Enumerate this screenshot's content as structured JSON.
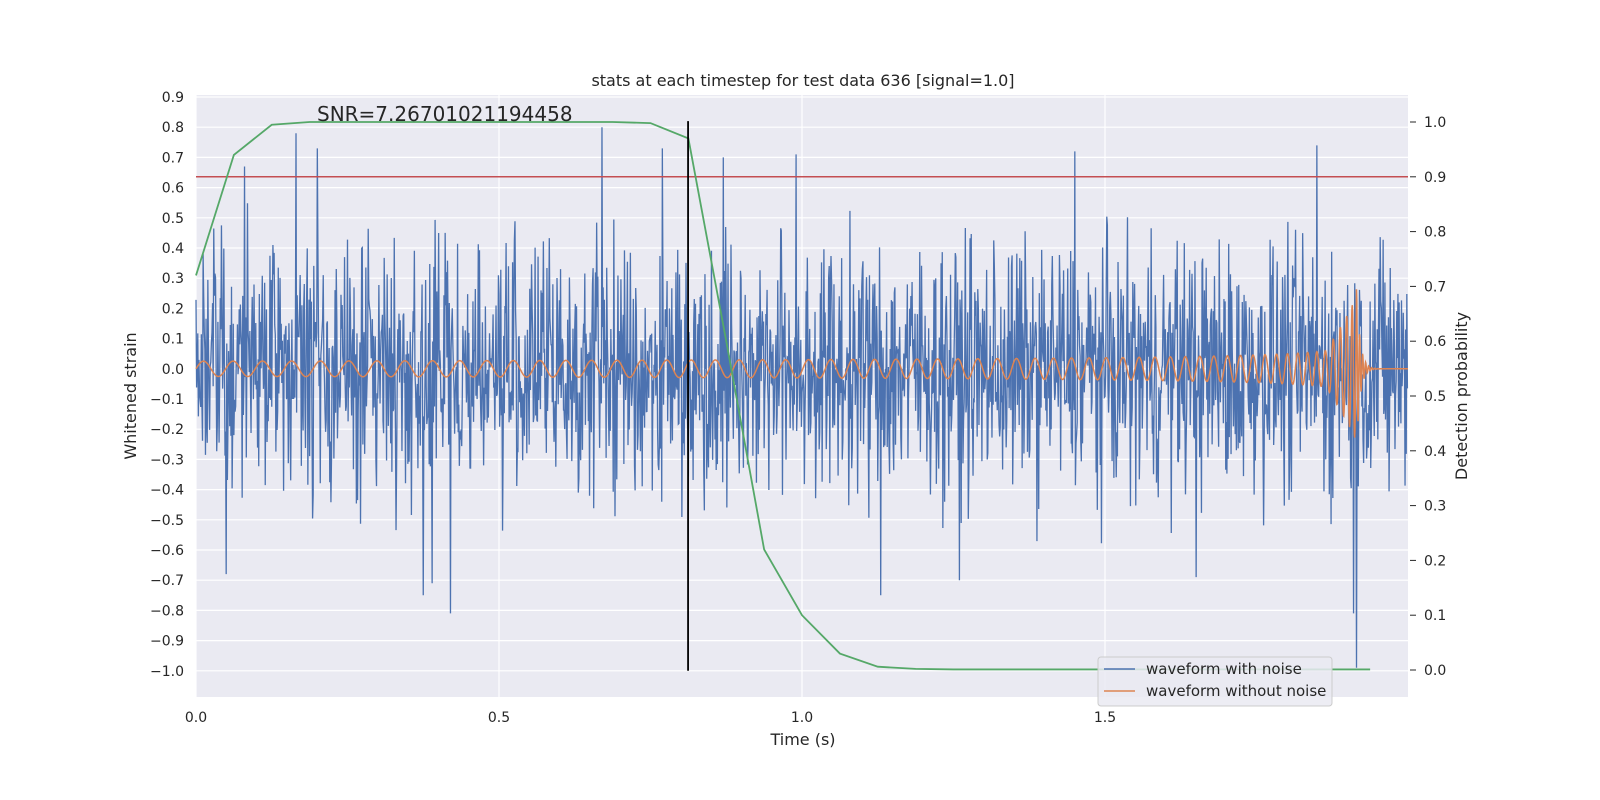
{
  "chart_data": {
    "type": "line",
    "title": "stats at each timestep for test data 636 [signal=1.0]",
    "xlabel": "Time (s)",
    "ylabel": "Whitened strain",
    "y2label": "Detection probability",
    "xlim": [
      0.0,
      2.0
    ],
    "ylim": [
      -1.09,
      0.9
    ],
    "y2lim": [
      -0.05,
      1.05
    ],
    "x_ticks": [
      0.0,
      0.5,
      1.0,
      1.5
    ],
    "x_tick_labels": [
      "0.0",
      "0.5",
      "1.0",
      "1.5"
    ],
    "y_ticks": [
      0.9,
      0.8,
      0.7,
      0.6,
      0.5,
      0.4,
      0.3,
      0.2,
      0.1,
      0.0,
      -0.1,
      -0.2,
      -0.3,
      -0.4,
      -0.5,
      -0.6,
      -0.7,
      -0.8,
      -0.9,
      -1.0
    ],
    "y_tick_labels": [
      "0.9",
      "0.8",
      "0.7",
      "0.6",
      "0.5",
      "0.4",
      "0.3",
      "0.2",
      "0.1",
      "0.0",
      "−0.1",
      "−0.2",
      "−0.3",
      "−0.4",
      "−0.5",
      "−0.6",
      "−0.7",
      "−0.8",
      "−0.9",
      "−1.0"
    ],
    "y2_ticks": [
      1.0,
      0.9,
      0.8,
      0.7,
      0.6,
      0.5,
      0.4,
      0.3,
      0.2,
      0.1,
      0.0
    ],
    "y2_tick_labels": [
      "1.0",
      "0.9",
      "0.8",
      "0.7",
      "0.6",
      "0.5",
      "0.4",
      "0.3",
      "0.2",
      "0.1",
      "0.0"
    ],
    "annotation": "SNR=7.26701021194458",
    "annotation_x": 0.2,
    "annotation_y": 0.8,
    "threshold": {
      "axis": "right",
      "value": 0.9,
      "color": "#c44e52"
    },
    "event_marker": {
      "x": 0.812,
      "ymin": -1.0,
      "ymax": 0.82,
      "color": "#000000"
    },
    "noise_series": {
      "name": "waveform with noise",
      "color": "#4c72b0",
      "x_end": 2.0,
      "n_points": 2048,
      "amplitude": 0.27,
      "spikes": [
        {
          "x": 0.165,
          "y": 0.78
        },
        {
          "x": 0.2,
          "y": 0.73
        },
        {
          "x": 0.08,
          "y": 0.67
        },
        {
          "x": 0.67,
          "y": 0.8
        },
        {
          "x": 0.77,
          "y": 0.73
        },
        {
          "x": 0.87,
          "y": 0.7
        },
        {
          "x": 0.99,
          "y": 0.71
        },
        {
          "x": 1.45,
          "y": 0.72
        },
        {
          "x": 1.85,
          "y": 0.74
        },
        {
          "x": 0.05,
          "y": -0.68
        },
        {
          "x": 0.42,
          "y": -0.81
        },
        {
          "x": 0.375,
          "y": -0.75
        },
        {
          "x": 0.39,
          "y": -0.71
        },
        {
          "x": 1.13,
          "y": -0.75
        },
        {
          "x": 1.26,
          "y": -0.7
        },
        {
          "x": 1.65,
          "y": -0.69
        },
        {
          "x": 1.915,
          "y": -0.99
        },
        {
          "x": 1.91,
          "y": -0.81
        }
      ]
    },
    "clean_series": {
      "name": "waveform without noise",
      "color": "#dd8452",
      "x_end": 2.0,
      "merger_time": 1.915,
      "base_amplitude": 0.025,
      "peak_amplitude": 0.27,
      "start_frequency_hz": 20,
      "peak_frequency_hz": 180
    },
    "detection_series": {
      "name": "detection probability",
      "color": "#55a868",
      "axis": "right",
      "x": [
        0.0,
        0.0625,
        0.125,
        0.1875,
        0.25,
        0.3125,
        0.375,
        0.4375,
        0.5,
        0.5625,
        0.625,
        0.6875,
        0.75,
        0.8125,
        0.875,
        0.9375,
        1.0,
        1.0625,
        1.125,
        1.1875,
        1.25,
        1.3125,
        1.375,
        1.4375,
        1.5,
        1.5625,
        1.625,
        1.6875,
        1.75,
        1.8125,
        1.875,
        1.9375
      ],
      "y": [
        0.72,
        0.94,
        0.995,
        1.0,
        1.0,
        1.0,
        1.0,
        1.0,
        1.0,
        1.0,
        1.0,
        1.0,
        0.998,
        0.97,
        0.6,
        0.22,
        0.1,
        0.03,
        0.006,
        0.002,
        0.001,
        0.001,
        0.001,
        0.001,
        0.001,
        0.001,
        0.001,
        0.001,
        0.001,
        0.001,
        0.001,
        0.001
      ]
    },
    "legend": {
      "position": "lower-right",
      "entries": [
        {
          "label": "waveform with noise",
          "color": "#4c72b0"
        },
        {
          "label": "waveform without noise",
          "color": "#dd8452"
        }
      ]
    },
    "grid": true,
    "background_color": "#eaeaf2",
    "grid_color": "#ffffff"
  }
}
